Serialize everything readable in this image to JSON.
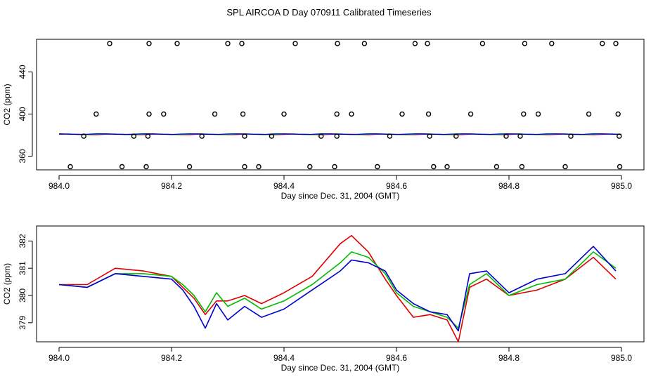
{
  "title": "SPL AIRCOA D  Day 070911  Calibrated Timeseries",
  "chart_data": [
    {
      "type": "scatter",
      "xlabel": "Day since Dec. 31, 2004 (GMT)",
      "ylabel": "CO2 (ppm)",
      "xlim": [
        983.96,
        985.04
      ],
      "ylim": [
        347,
        471
      ],
      "xticks": [
        "984.0",
        "984.2",
        "984.4",
        "984.6",
        "984.8",
        "985.0"
      ],
      "xtick_values": [
        984.0,
        984.2,
        984.4,
        984.6,
        984.8,
        985.0
      ],
      "yticks": [
        "360",
        "400",
        "440"
      ],
      "ytick_values": [
        360,
        400,
        440
      ],
      "points": {
        "x": [
          984.09,
          984.16,
          984.21,
          984.3,
          984.325,
          984.42,
          984.495,
          984.543,
          984.633,
          984.655,
          984.753,
          984.828,
          984.876,
          984.966,
          984.99,
          984.066,
          984.16,
          984.186,
          984.277,
          984.327,
          984.4,
          984.494,
          984.52,
          984.61,
          984.657,
          984.732,
          984.826,
          984.852,
          984.942,
          984.994,
          984.044,
          984.133,
          984.158,
          984.254,
          984.33,
          984.378,
          984.466,
          984.494,
          984.588,
          984.659,
          984.706,
          984.795,
          984.82,
          984.91,
          984.996,
          984.02,
          984.112,
          984.155,
          984.232,
          984.33,
          984.355,
          984.446,
          984.49,
          984.566,
          984.666,
          984.69,
          984.778,
          984.823,
          984.9,
          984.997
        ],
        "y": [
          467,
          467,
          467,
          467,
          467,
          467,
          467,
          467,
          467,
          467,
          467,
          467,
          467,
          467,
          467,
          400,
          400,
          400,
          400,
          400,
          400,
          400,
          400,
          400,
          400,
          400,
          400,
          400,
          400,
          400,
          379,
          379,
          379,
          379,
          379,
          379,
          379,
          379,
          379,
          379,
          379,
          379,
          379,
          379,
          379,
          350,
          350,
          350,
          350,
          350,
          350,
          350,
          350,
          350,
          350,
          350,
          350,
          350,
          350,
          350
        ]
      },
      "series": [
        {
          "name": "red",
          "color": "#dd0000"
        },
        {
          "name": "green",
          "color": "#00bb00"
        },
        {
          "name": "blue",
          "color": "#0000cc"
        }
      ]
    },
    {
      "type": "line",
      "xlabel": "Day since Dec. 31, 2004 (GMT)",
      "ylabel": "CO2 (ppm)",
      "xlim": [
        983.96,
        985.04
      ],
      "ylim": [
        378.3,
        382.55
      ],
      "xticks": [
        "984.0",
        "984.2",
        "984.4",
        "984.6",
        "984.8",
        "985.0"
      ],
      "xtick_values": [
        984.0,
        984.2,
        984.4,
        984.6,
        984.8,
        985.0
      ],
      "yticks": [
        "379",
        "380",
        "381",
        "382"
      ],
      "ytick_values": [
        379,
        380,
        381,
        382
      ],
      "x": [
        984.0,
        984.05,
        984.1,
        984.15,
        984.2,
        984.22,
        984.24,
        984.26,
        984.28,
        984.3,
        984.33,
        984.36,
        984.4,
        984.45,
        984.5,
        984.52,
        984.55,
        984.58,
        984.6,
        984.63,
        984.66,
        984.69,
        984.71,
        984.73,
        984.76,
        984.8,
        984.85,
        984.9,
        984.95,
        984.99
      ],
      "series": [
        {
          "name": "red",
          "color": "#dd0000",
          "values": [
            380.4,
            380.4,
            381.0,
            380.9,
            380.7,
            380.3,
            379.9,
            379.3,
            379.8,
            379.8,
            380.0,
            379.7,
            380.1,
            380.7,
            381.9,
            382.2,
            381.6,
            380.6,
            380.0,
            379.2,
            379.3,
            379.1,
            378.3,
            380.3,
            380.6,
            380.0,
            380.2,
            380.6,
            381.4,
            380.6
          ]
        },
        {
          "name": "green",
          "color": "#00bb00",
          "values": [
            380.4,
            380.3,
            380.8,
            380.8,
            380.7,
            380.4,
            380.0,
            379.4,
            380.1,
            379.6,
            379.9,
            379.5,
            379.8,
            380.4,
            381.2,
            381.6,
            381.4,
            380.8,
            380.1,
            379.6,
            379.4,
            379.2,
            378.8,
            380.4,
            380.8,
            380.0,
            380.4,
            380.6,
            381.6,
            381.0
          ]
        },
        {
          "name": "blue",
          "color": "#0000cc",
          "values": [
            380.4,
            380.3,
            380.8,
            380.7,
            380.6,
            380.2,
            379.6,
            378.8,
            379.7,
            379.1,
            379.6,
            379.2,
            379.5,
            380.2,
            380.9,
            381.3,
            381.2,
            380.9,
            380.2,
            379.7,
            379.4,
            379.3,
            378.7,
            380.8,
            380.9,
            380.1,
            380.6,
            380.8,
            381.8,
            380.9
          ]
        }
      ]
    }
  ]
}
